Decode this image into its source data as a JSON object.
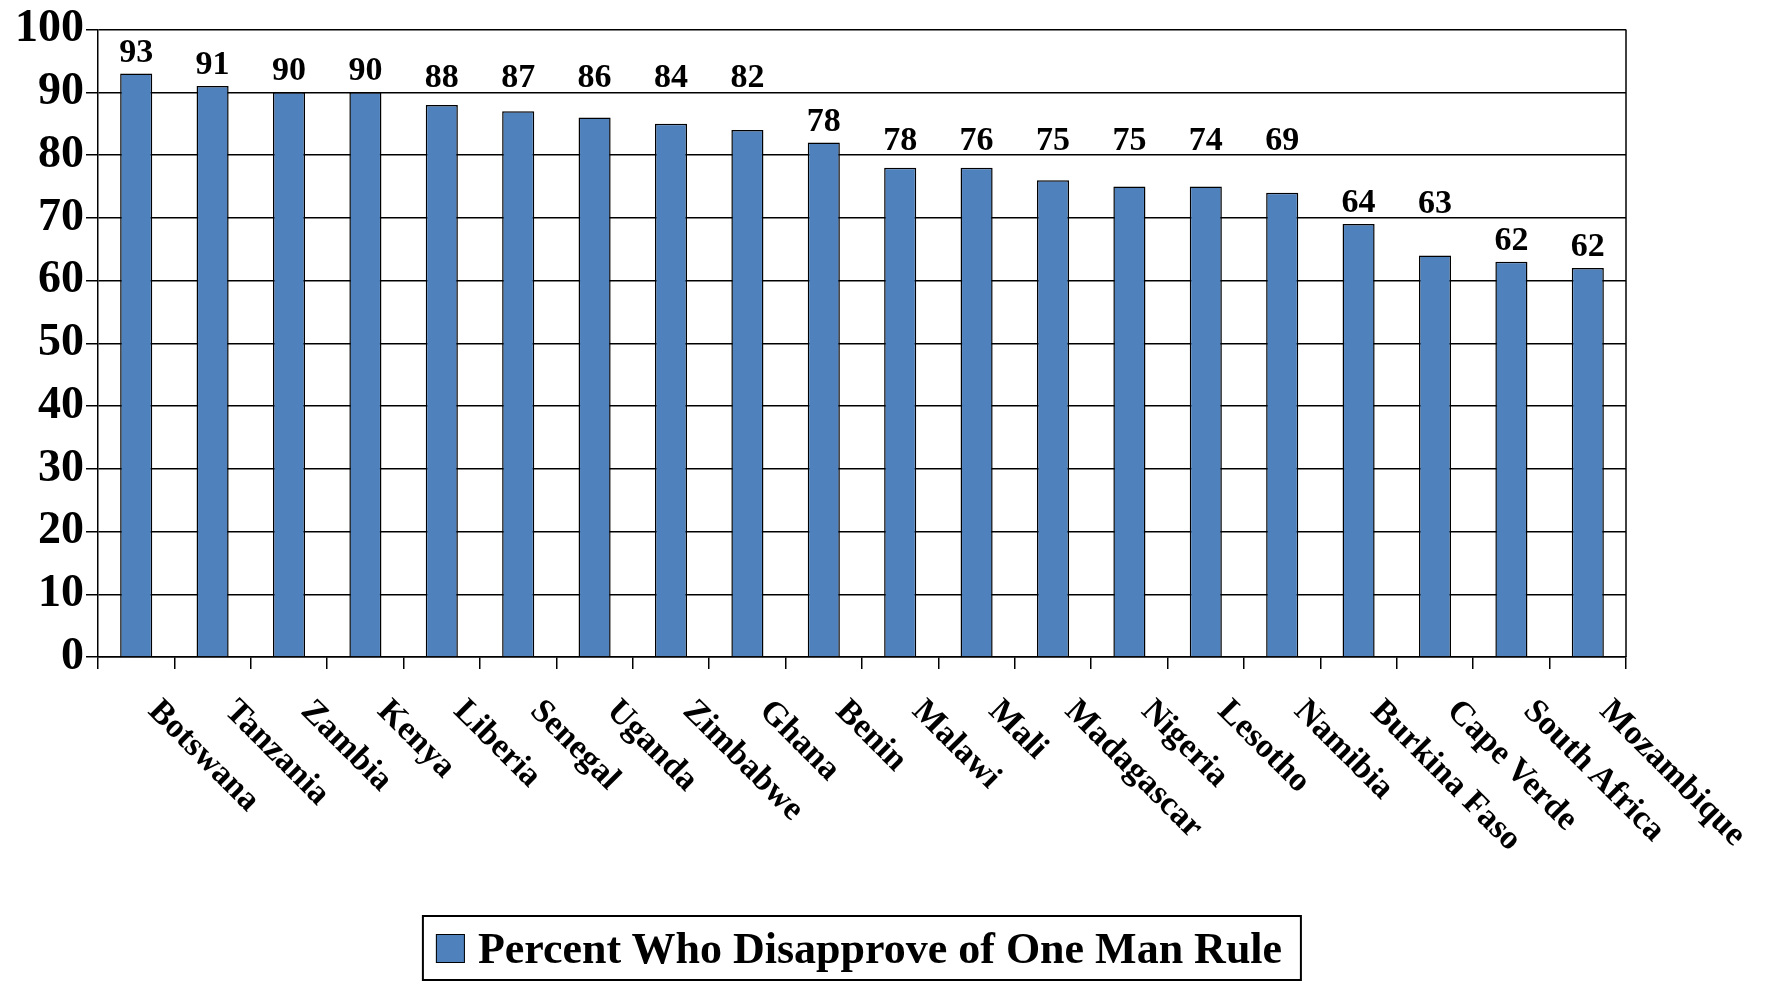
{
  "chart_data": {
    "type": "bar",
    "categories": [
      "Botswana",
      "Tanzania",
      "Zambia",
      "Kenya",
      "Liberia",
      "Senegal",
      "Uganda",
      "Zimbabwe",
      "Ghana",
      "Benin",
      "Malawi",
      "Mali",
      "Madagascar",
      "Nigeria",
      "Lesotho",
      "Namibia",
      "Burkina Faso",
      "Cape Verde",
      "South Africa",
      "Mozambique"
    ],
    "series": [
      {
        "name": "Percent Who Disapprove of One Man Rule",
        "color": "#4f81bd",
        "values": [
          93,
          91,
          90,
          90,
          88,
          87,
          86,
          85,
          84,
          82,
          78,
          78,
          76,
          75,
          75,
          74,
          69,
          64,
          63,
          62
        ]
      }
    ],
    "annotations": [
      "93",
      "91",
      "90",
      "90",
      "88",
      "87",
      "86",
      "84",
      "82",
      "78",
      "78",
      "76",
      "75",
      "75",
      "74",
      "69",
      "64",
      "63",
      "62",
      "62"
    ],
    "ylim": [
      0,
      100
    ],
    "yticks": [
      0,
      10,
      20,
      30,
      40,
      50,
      60,
      70,
      80,
      90,
      100
    ],
    "grid": "y",
    "legend": "bottom"
  }
}
